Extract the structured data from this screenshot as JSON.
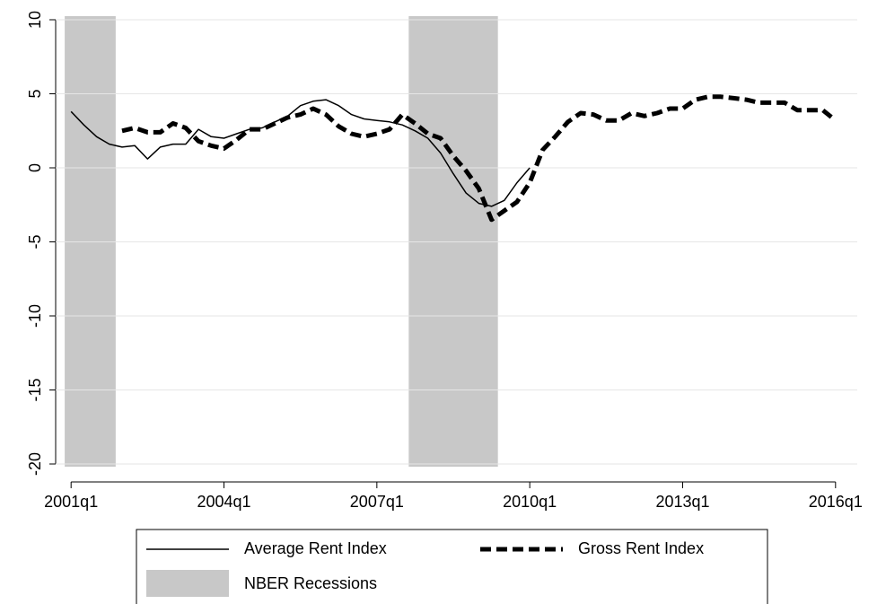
{
  "chart_data": {
    "type": "line",
    "x": [
      "2001q1",
      "2001q2",
      "2001q3",
      "2001q4",
      "2002q1",
      "2002q2",
      "2002q3",
      "2002q4",
      "2003q1",
      "2003q2",
      "2003q3",
      "2003q4",
      "2004q1",
      "2004q2",
      "2004q3",
      "2004q4",
      "2005q1",
      "2005q2",
      "2005q3",
      "2005q4",
      "2006q1",
      "2006q2",
      "2006q3",
      "2006q4",
      "2007q1",
      "2007q2",
      "2007q3",
      "2007q4",
      "2008q1",
      "2008q2",
      "2008q3",
      "2008q4",
      "2009q1",
      "2009q2",
      "2009q3",
      "2009q4",
      "2010q1",
      "2010q2",
      "2010q3",
      "2010q4",
      "2011q1",
      "2011q2",
      "2011q3",
      "2011q4",
      "2012q1",
      "2012q2",
      "2012q3",
      "2012q4",
      "2013q1",
      "2013q2",
      "2013q3",
      "2013q4",
      "2014q1",
      "2014q2",
      "2014q3",
      "2014q4",
      "2015q1",
      "2015q2",
      "2015q3",
      "2015q4",
      "2016q1"
    ],
    "series": [
      {
        "name": "Average Rent Index",
        "color": "#000000",
        "style": "solid",
        "values": [
          3.8,
          2.9,
          2.1,
          1.6,
          1.4,
          1.5,
          0.6,
          1.4,
          1.6,
          1.6,
          2.6,
          2.1,
          2.0,
          2.3,
          2.6,
          2.7,
          3.1,
          3.5,
          4.2,
          4.5,
          4.6,
          4.2,
          3.6,
          3.3,
          3.2,
          3.1,
          2.9,
          2.5,
          2.0,
          1.0,
          -0.4,
          -1.7,
          -2.4,
          -2.6,
          -2.2,
          -1.0,
          0.0,
          null,
          null,
          null,
          null,
          null,
          null,
          null,
          null,
          null,
          null,
          null,
          null,
          null,
          null,
          null,
          null,
          null,
          null,
          null,
          null,
          null,
          null,
          null,
          null
        ]
      },
      {
        "name": "Gross Rent Index",
        "color": "#000000",
        "style": "dashed",
        "values": [
          null,
          null,
          null,
          null,
          2.5,
          2.7,
          2.4,
          2.4,
          3.0,
          2.7,
          1.8,
          1.5,
          1.3,
          1.9,
          2.6,
          2.6,
          3.0,
          3.4,
          3.6,
          4.0,
          3.6,
          2.8,
          2.3,
          2.1,
          2.3,
          2.6,
          3.6,
          3.0,
          2.3,
          2.0,
          0.8,
          -0.2,
          -1.4,
          -3.5,
          -2.9,
          -2.3,
          -1.0,
          1.2,
          2.1,
          3.1,
          3.7,
          3.6,
          3.2,
          3.2,
          3.7,
          3.5,
          3.7,
          4.0,
          4.0,
          4.6,
          4.8,
          4.8,
          4.7,
          4.6,
          4.4,
          4.4,
          4.4,
          3.9,
          3.9,
          3.9,
          3.2
        ]
      }
    ],
    "shading": {
      "name": "NBER Recessions",
      "color": "#c8c8c8",
      "periods": [
        [
          "2001q1",
          "2001q4"
        ],
        [
          "2007q4",
          "2009q2"
        ]
      ]
    },
    "xlim": [
      "2000q4",
      "2016q2"
    ],
    "xticks": [
      "2001q1",
      "2004q1",
      "2007q1",
      "2010q1",
      "2013q1",
      "2016q1"
    ],
    "ylim": [
      -20,
      10
    ],
    "yticks": [
      -20,
      -15,
      -10,
      -5,
      0,
      5,
      10
    ],
    "grid": true
  }
}
